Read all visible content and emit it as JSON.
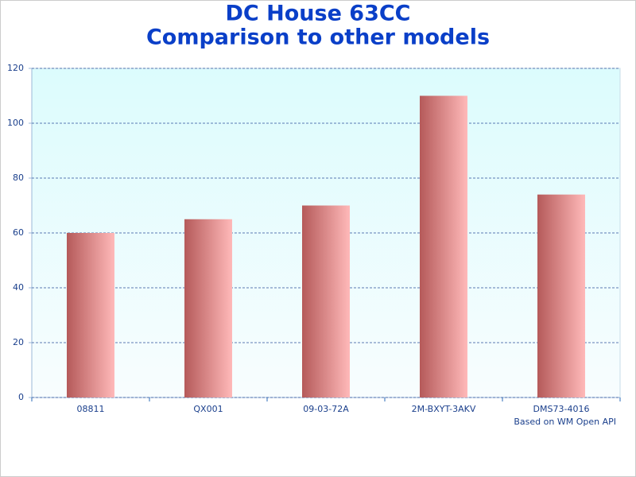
{
  "chart_data": {
    "type": "bar",
    "title": "DC House 63CC",
    "subtitle": "Comparison to other models",
    "annotation": "Based on WM Open API",
    "categories": [
      "08811",
      "QX001",
      "09-03-72A",
      "2M-BXYT-3AKV",
      "DMS73-4016"
    ],
    "values": [
      60,
      65,
      70,
      110,
      74
    ],
    "ylim": [
      0,
      120
    ],
    "yticks": [
      0,
      20,
      40,
      60,
      80,
      100,
      120
    ],
    "grid": true
  }
}
